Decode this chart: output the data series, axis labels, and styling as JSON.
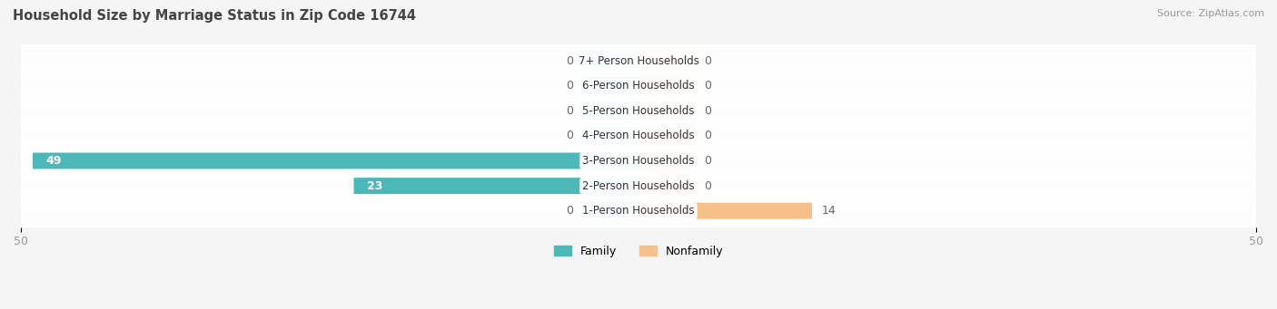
{
  "title": "Household Size by Marriage Status in Zip Code 16744",
  "source": "Source: ZipAtlas.com",
  "categories": [
    "7+ Person Households",
    "6-Person Households",
    "5-Person Households",
    "4-Person Households",
    "3-Person Households",
    "2-Person Households",
    "1-Person Households"
  ],
  "family_values": [
    0,
    0,
    0,
    0,
    49,
    23,
    0
  ],
  "nonfamily_values": [
    0,
    0,
    0,
    0,
    0,
    0,
    14
  ],
  "family_color": "#4DB8B8",
  "nonfamily_color": "#F5C08A",
  "axis_limit": 50,
  "bg_color": "#f5f5f5",
  "row_bg_color": "#ffffff",
  "row_bg_alpha": 0.9,
  "bar_height": 0.55,
  "stub_size": 4.5,
  "label_color_dark": "#666666",
  "label_color_white": "#ffffff",
  "title_fontsize": 10.5,
  "source_fontsize": 8,
  "tick_fontsize": 9,
  "legend_fontsize": 9,
  "category_fontsize": 8.5
}
